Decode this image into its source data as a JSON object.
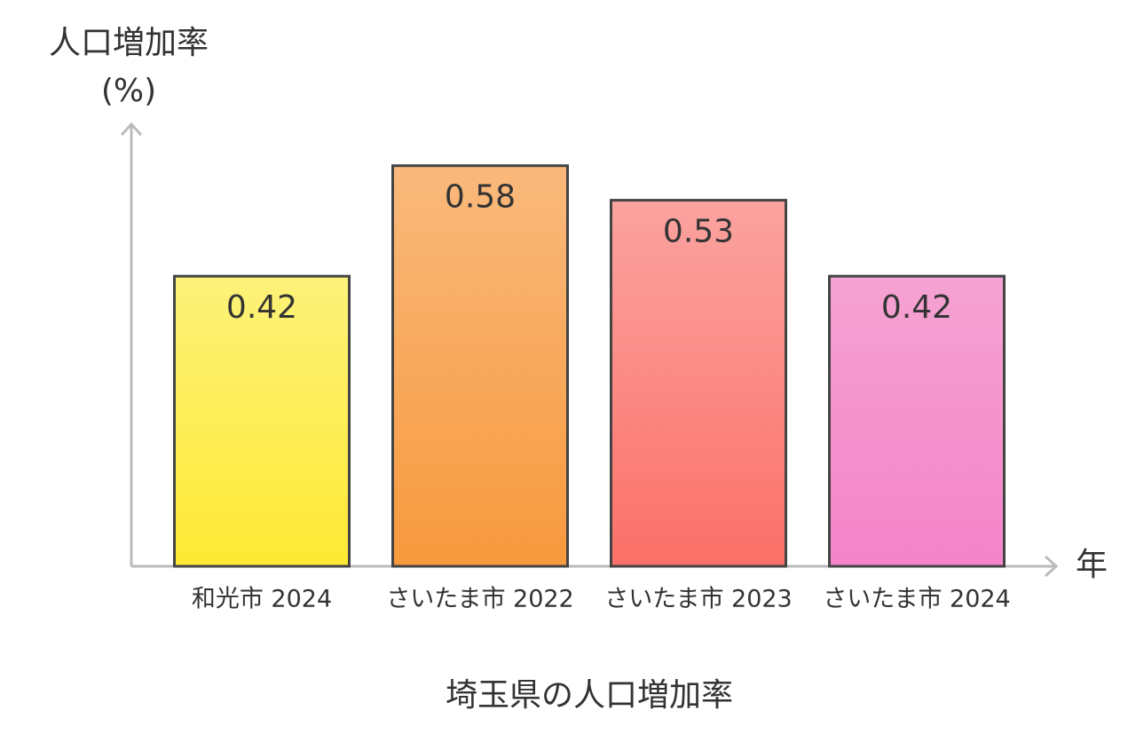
{
  "chart_data": {
    "type": "bar",
    "title": "埼玉県の人口増加率",
    "y_label": "人口増加率\n(%)",
    "x_label": "年",
    "categories": [
      "和光市 2024",
      "さいたま市 2022",
      "さいたま市 2023",
      "さいたま市 2024"
    ],
    "values": [
      0.42,
      0.58,
      0.53,
      0.42
    ],
    "colors": [
      [
        "#fdf27a",
        "#fde933"
      ],
      [
        "#f9b97c",
        "#f7993d"
      ],
      [
        "#fba3a0",
        "#fb7068"
      ],
      [
        "#f5a3d2",
        "#f483c8"
      ]
    ],
    "ylim": [
      0,
      0.64
    ],
    "grid": false
  }
}
